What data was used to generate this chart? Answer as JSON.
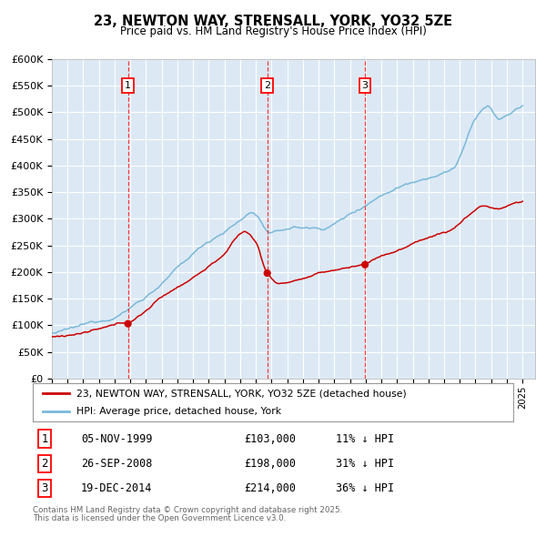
{
  "title": "23, NEWTON WAY, STRENSALL, YORK, YO32 5ZE",
  "subtitle": "Price paid vs. HM Land Registry's House Price Index (HPI)",
  "bg_color": "#dce9f5",
  "hpi_color": "#7ab8d9",
  "price_color": "#cc0000",
  "ylim": [
    0,
    600000
  ],
  "yticks": [
    0,
    50000,
    100000,
    150000,
    200000,
    250000,
    300000,
    350000,
    400000,
    450000,
    500000,
    550000,
    600000
  ],
  "xlim_start": 1995.0,
  "xlim_end": 2025.8,
  "transactions": [
    {
      "num": 1,
      "date": "05-NOV-1999",
      "price": 103000,
      "hpi_pct": "11% ↓ HPI",
      "year_x": 1999.85
    },
    {
      "num": 2,
      "date": "26-SEP-2008",
      "price": 198000,
      "hpi_pct": "31% ↓ HPI",
      "year_x": 2008.73
    },
    {
      "num": 3,
      "date": "19-DEC-2014",
      "price": 214000,
      "hpi_pct": "36% ↓ HPI",
      "year_x": 2014.96
    }
  ],
  "legend_price_label": "23, NEWTON WAY, STRENSALL, YORK, YO32 5ZE (detached house)",
  "legend_hpi_label": "HPI: Average price, detached house, York",
  "footer_line1": "Contains HM Land Registry data © Crown copyright and database right 2025.",
  "footer_line2": "This data is licensed under the Open Government Licence v3.0."
}
